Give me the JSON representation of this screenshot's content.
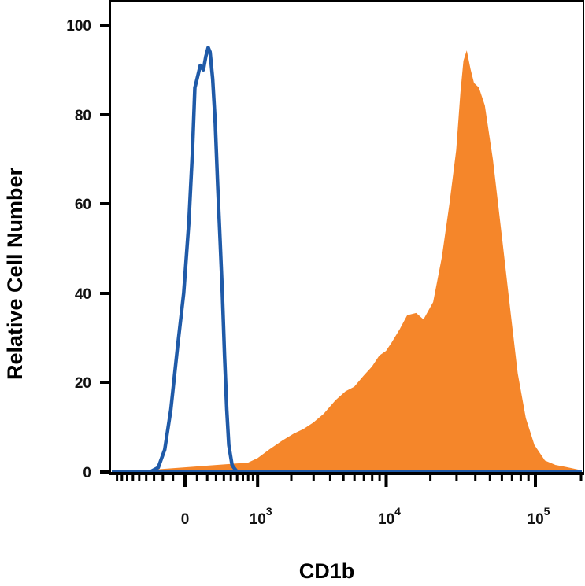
{
  "chart_data": {
    "type": "area",
    "xlabel": "CD1b",
    "ylabel": "Relative Cell Number",
    "x_scale": "biexponential",
    "ylim": [
      0,
      100
    ],
    "yticks": [
      "0",
      "20",
      "40",
      "60",
      "80",
      "100"
    ],
    "xticks": [
      {
        "base": "0",
        "exp": ""
      },
      {
        "base": "10",
        "exp": "3"
      },
      {
        "base": "10",
        "exp": "4"
      },
      {
        "base": "10",
        "exp": "5"
      }
    ],
    "grid": false,
    "legend": "none",
    "series": [
      {
        "style": "outline",
        "color": "#1f5aa8",
        "points": [
          [
            -350,
            0
          ],
          [
            -250,
            1
          ],
          [
            -180,
            5
          ],
          [
            -120,
            14
          ],
          [
            -60,
            28
          ],
          [
            -10,
            40
          ],
          [
            30,
            56
          ],
          [
            60,
            72
          ],
          [
            80,
            86
          ],
          [
            100,
            88
          ],
          [
            130,
            91
          ],
          [
            160,
            90
          ],
          [
            185,
            93
          ],
          [
            210,
            95
          ],
          [
            230,
            94
          ],
          [
            260,
            88
          ],
          [
            290,
            78
          ],
          [
            320,
            64
          ],
          [
            350,
            52
          ],
          [
            380,
            40
          ],
          [
            410,
            26
          ],
          [
            440,
            14
          ],
          [
            470,
            6
          ],
          [
            520,
            1.5
          ],
          [
            600,
            0
          ]
        ]
      },
      {
        "style": "filled",
        "color": "#f5862a",
        "points": [
          [
            -700,
            0
          ],
          [
            800,
            2
          ],
          [
            1000,
            3
          ],
          [
            1300,
            5
          ],
          [
            1700,
            7
          ],
          [
            2100,
            8.5
          ],
          [
            2500,
            9.5
          ],
          [
            3000,
            11
          ],
          [
            3600,
            13
          ],
          [
            4400,
            16
          ],
          [
            5200,
            18
          ],
          [
            6000,
            19
          ],
          [
            7000,
            21.5
          ],
          [
            8000,
            23.5
          ],
          [
            9000,
            26
          ],
          [
            10000,
            27
          ],
          [
            11000,
            29
          ],
          [
            12500,
            32
          ],
          [
            14000,
            35
          ],
          [
            16000,
            35.5
          ],
          [
            18000,
            34
          ],
          [
            21000,
            38
          ],
          [
            24000,
            48
          ],
          [
            27000,
            60
          ],
          [
            30000,
            72
          ],
          [
            32000,
            85
          ],
          [
            33500,
            92
          ],
          [
            35000,
            94
          ],
          [
            37000,
            90
          ],
          [
            39000,
            87
          ],
          [
            42000,
            86
          ],
          [
            46000,
            82
          ],
          [
            52000,
            70
          ],
          [
            60000,
            52
          ],
          [
            68000,
            36
          ],
          [
            76000,
            22
          ],
          [
            86000,
            12
          ],
          [
            98000,
            6
          ],
          [
            115000,
            2.5
          ],
          [
            135000,
            1.5
          ],
          [
            160000,
            1
          ],
          [
            200000,
            0.3
          ]
        ]
      }
    ]
  }
}
